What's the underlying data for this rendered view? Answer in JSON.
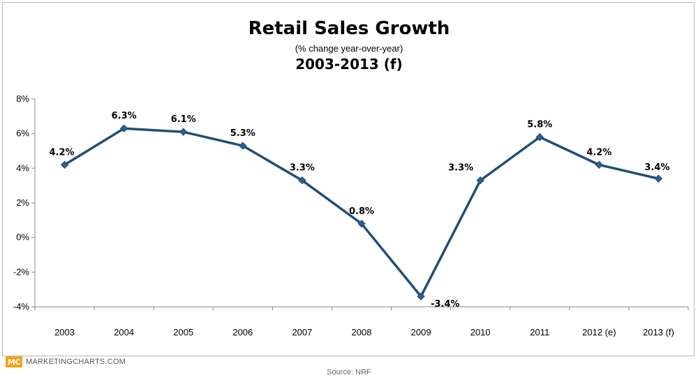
{
  "chart_data": {
    "type": "line",
    "title": "Retail Sales Growth",
    "subtitle": "(% change year-over-year)",
    "period": "2003-2013 (f)",
    "categories": [
      "2003",
      "2004",
      "2005",
      "2006",
      "2007",
      "2008",
      "2009",
      "2010",
      "2011",
      "2012 (e)",
      "2013 (f)"
    ],
    "series": [
      {
        "values": [
          4.2,
          6.3,
          6.1,
          5.3,
          3.3,
          0.8,
          -3.4,
          3.3,
          5.8,
          4.2,
          3.4
        ],
        "labels": [
          "4.2%",
          "6.3%",
          "6.1%",
          "5.3%",
          "3.3%",
          "0.8%",
          "-3.4%",
          "3.3%",
          "5.8%",
          "4.2%",
          "3.4%"
        ]
      }
    ],
    "ylim": [
      -4,
      8
    ],
    "yticks": [
      8,
      6,
      4,
      2,
      0,
      -2,
      -4
    ],
    "ytick_labels": [
      "8%",
      "6%",
      "4%",
      "2%",
      "0%",
      "-2%",
      "-4%"
    ],
    "grid": false,
    "legend": "none",
    "line_color": "#1f4e79",
    "marker": "diamond"
  },
  "brand": {
    "logo_text": "MC",
    "name": "MARKETINGCHARTS.COM",
    "logo_color": "#f7a21b"
  },
  "source": "Source: NRF"
}
